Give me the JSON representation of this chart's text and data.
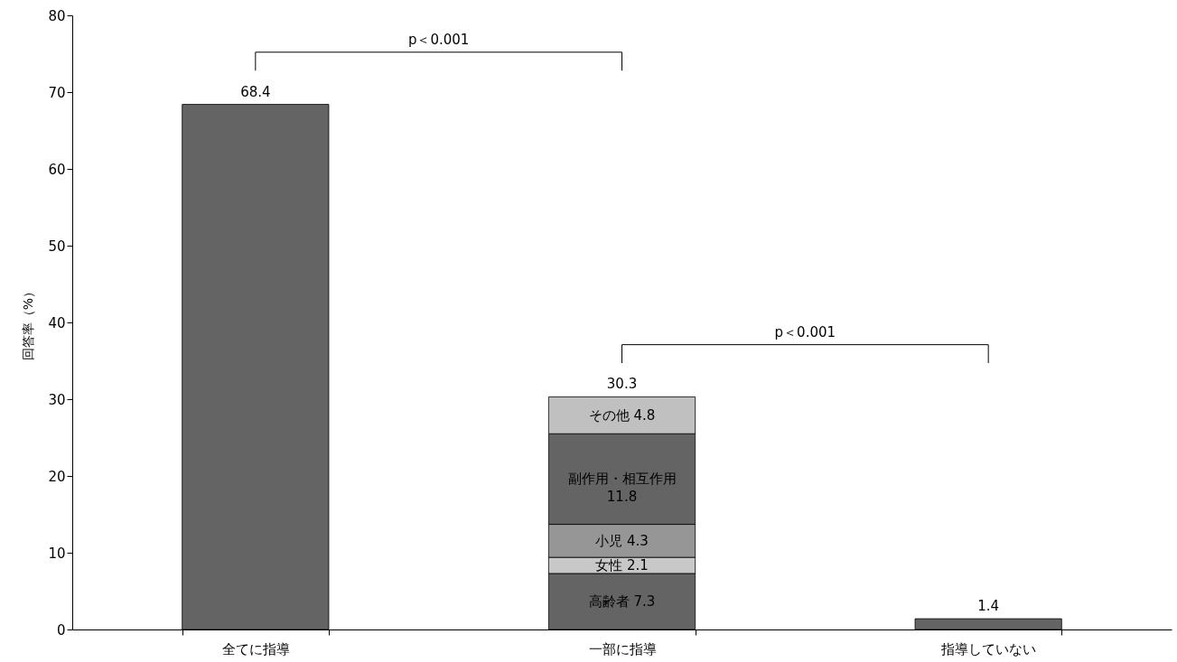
{
  "chart_data": {
    "type": "bar",
    "stacked": true,
    "ylabel": "回答率（%）",
    "categories": [
      "全てに指導",
      "一部に指導",
      "指導していない"
    ],
    "ylim": [
      0,
      80
    ],
    "yticks": [
      0,
      10,
      20,
      30,
      40,
      50,
      60,
      70,
      80
    ],
    "series": [
      {
        "color": "#646464",
        "values": [
          68.4,
          null,
          1.4
        ]
      },
      {
        "name": "高齢者",
        "color": "#646464",
        "values": [
          null,
          7.3,
          null
        ],
        "value_labels": [
          null,
          "7.3",
          null
        ]
      },
      {
        "name": "女性",
        "color": "#c8c8c8",
        "values": [
          null,
          2.1,
          null
        ],
        "value_labels": [
          null,
          "2.1",
          null
        ]
      },
      {
        "name": "小児",
        "color": "#969696",
        "values": [
          null,
          4.3,
          null
        ],
        "value_labels": [
          null,
          "4.3",
          null
        ]
      },
      {
        "name": "副作用・相互作用",
        "color": "#646464",
        "values": [
          null,
          11.8,
          null
        ],
        "value_labels": [
          null,
          "11.8",
          null
        ]
      },
      {
        "name": "その他",
        "color": "#c0c0c0",
        "values": [
          null,
          4.8,
          null
        ],
        "value_labels": [
          null,
          "4.8",
          null
        ]
      }
    ],
    "totals": [
      "68.4",
      "30.3",
      "1.4"
    ],
    "annotations": [
      "p＜0.001",
      "p＜0.001"
    ]
  }
}
